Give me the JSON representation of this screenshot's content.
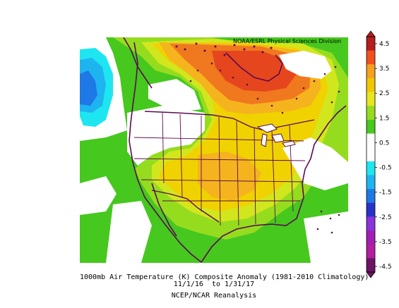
{
  "credit": "NOAA/ESRL Physical Sciences Division",
  "caption": {
    "line1": "1000mb Air Temperature (K) Composite Anomaly (1981-2010 Climatology)",
    "line2": "11/1/16  to 1/31/17",
    "line3": "NCEP/NCAR Reanalysis"
  },
  "colorbar": {
    "levels": [
      "4.5",
      "3.5",
      "2.5",
      "1.5",
      "0.5",
      "-0.5",
      "-1.5",
      "-2.5",
      "-3.5",
      "-4.5"
    ],
    "colors": [
      "#b41e1e",
      "#f0501e",
      "#f5a01e",
      "#f0c800",
      "#e6e61e",
      "#96dc1e",
      "#46c81e",
      "#ffffff",
      "#ffffff",
      "#1ee6f0",
      "#1eb4f0",
      "#1e78e6",
      "#2832c8",
      "#8c32dc",
      "#a01eb4",
      "#b41ea0",
      "#6e1464"
    ]
  },
  "map": {
    "colors": {
      "white": "#ffffff",
      "green": "#46c81e",
      "light_green": "#96dc1e",
      "yellow_green": "#d2e61e",
      "yellow": "#f0d200",
      "light_orange": "#f5b41e",
      "orange": "#f0781e",
      "red_orange": "#e6461e",
      "cyan": "#1ee6f0",
      "light_blue": "#1eb4f0",
      "blue": "#1e78e6",
      "coast": "#5a0a50"
    }
  }
}
